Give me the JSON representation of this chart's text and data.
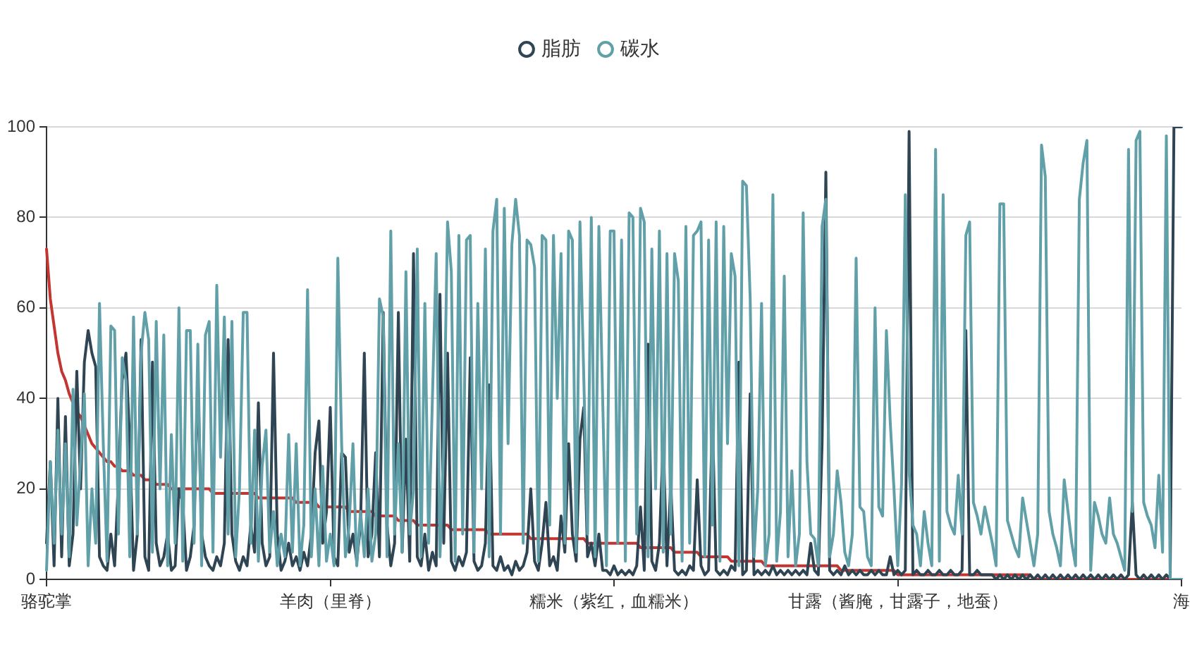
{
  "chart_data": {
    "type": "line",
    "categories": [
      "骆驼掌",
      null,
      null,
      null,
      null,
      null,
      null,
      null,
      null,
      null,
      null,
      null,
      null,
      null,
      null,
      null,
      null,
      null,
      null,
      null,
      null,
      null,
      null,
      null,
      null,
      null,
      null,
      null,
      null,
      null,
      null,
      null,
      null,
      null,
      null,
      null,
      null,
      null,
      null,
      null,
      null,
      null,
      null,
      null,
      null,
      null,
      null,
      null,
      null,
      null,
      null,
      null,
      null,
      null,
      null,
      null,
      null,
      null,
      null,
      null,
      null,
      null,
      null,
      null,
      null,
      null,
      null,
      null,
      null,
      null,
      null,
      null,
      null,
      null,
      null,
      "羊肉（里脊）",
      null,
      null,
      null,
      null,
      null,
      null,
      null,
      null,
      null,
      null,
      null,
      null,
      null,
      null,
      null,
      null,
      null,
      null,
      null,
      null,
      null,
      null,
      null,
      null,
      null,
      null,
      null,
      null,
      null,
      null,
      null,
      null,
      null,
      null,
      null,
      null,
      null,
      null,
      null,
      null,
      null,
      null,
      null,
      null,
      null,
      null,
      null,
      null,
      null,
      null,
      null,
      null,
      null,
      null,
      null,
      null,
      null,
      null,
      null,
      null,
      null,
      null,
      null,
      null,
      null,
      null,
      null,
      null,
      null,
      null,
      null,
      null,
      null,
      null,
      "糯米（紫红，血糯米）",
      null,
      null,
      null,
      null,
      null,
      null,
      null,
      null,
      null,
      null,
      null,
      null,
      null,
      null,
      null,
      null,
      null,
      null,
      null,
      null,
      null,
      null,
      null,
      null,
      null,
      null,
      null,
      null,
      null,
      null,
      null,
      null,
      null,
      null,
      null,
      null,
      null,
      null,
      null,
      null,
      null,
      null,
      null,
      null,
      null,
      null,
      null,
      null,
      null,
      null,
      null,
      null,
      null,
      null,
      null,
      null,
      null,
      null,
      null,
      null,
      null,
      null,
      null,
      null,
      null,
      null,
      null,
      null,
      null,
      null,
      null,
      null,
      null,
      null,
      "甘露（酱腌，甘露子，地蚕）",
      null,
      null,
      null,
      null,
      null,
      null,
      null,
      null,
      null,
      null,
      null,
      null,
      null,
      null,
      null,
      null,
      null,
      null,
      null,
      null,
      null,
      null,
      null,
      null,
      null,
      null,
      null,
      null,
      null,
      null,
      null,
      null,
      null,
      null,
      null,
      null,
      null,
      null,
      null,
      null,
      null,
      null,
      null,
      null,
      null,
      null,
      null,
      null,
      null,
      null,
      null,
      null,
      null,
      null,
      null,
      null,
      null,
      null,
      null,
      null,
      null,
      null,
      null,
      null,
      null,
      null,
      null,
      null,
      null,
      null,
      null,
      null,
      null,
      null,
      "海"
    ],
    "series": [
      {
        "color": "#c23531",
        "values": [
          73,
          62,
          56,
          50,
          46,
          44,
          41,
          39,
          37,
          36,
          34,
          32,
          30,
          29,
          28,
          27,
          26,
          26,
          25,
          25,
          24,
          24,
          24,
          23,
          23,
          23,
          22,
          22,
          22,
          21,
          21,
          21,
          21,
          20,
          20,
          20,
          20,
          20,
          20,
          20,
          20,
          20,
          20,
          20,
          19,
          19,
          19,
          19,
          19,
          19,
          19,
          19,
          19,
          19,
          19,
          19,
          18,
          18,
          18,
          18,
          18,
          18,
          18,
          18,
          18,
          18,
          17,
          17,
          17,
          17,
          17,
          17,
          16,
          16,
          16,
          16,
          16,
          16,
          16,
          16,
          15,
          15,
          15,
          15,
          15,
          15,
          15,
          14,
          14,
          14,
          14,
          14,
          14,
          13,
          13,
          13,
          13,
          13,
          12,
          12,
          12,
          12,
          12,
          12,
          12,
          12,
          12,
          11,
          11,
          11,
          11,
          11,
          11,
          11,
          11,
          11,
          11,
          10,
          10,
          10,
          10,
          10,
          10,
          10,
          10,
          10,
          10,
          10,
          9,
          9,
          9,
          9,
          9,
          9,
          9,
          9,
          9,
          9,
          9,
          9,
          9,
          9,
          9,
          8,
          8,
          8,
          8,
          8,
          8,
          8,
          8,
          8,
          8,
          8,
          8,
          8,
          8,
          7,
          7,
          7,
          7,
          7,
          7,
          7,
          7,
          7,
          6,
          6,
          6,
          6,
          6,
          6,
          6,
          5,
          5,
          5,
          5,
          5,
          5,
          5,
          5,
          4,
          4,
          4,
          4,
          4,
          4,
          4,
          4,
          4,
          3,
          3,
          3,
          3,
          3,
          3,
          3,
          3,
          3,
          3,
          3,
          3,
          3,
          3,
          3,
          3,
          3,
          3,
          3,
          3,
          2,
          2,
          2,
          2,
          2,
          2,
          2,
          2,
          2,
          2,
          2,
          2,
          2,
          2,
          2,
          1,
          1,
          1,
          1,
          1,
          1,
          1,
          1,
          1,
          1,
          1,
          1,
          1,
          1,
          1,
          1,
          1,
          1,
          1,
          1,
          1,
          1,
          1,
          1,
          1,
          1,
          1,
          1,
          1,
          1,
          1,
          1,
          1,
          1,
          1,
          1,
          0,
          0,
          0,
          0,
          0,
          0,
          0,
          0,
          0,
          0,
          0,
          0,
          0,
          0,
          0,
          0,
          0,
          0,
          0,
          0,
          0,
          0,
          0,
          0,
          0,
          0,
          0,
          0,
          0,
          0,
          0,
          0,
          0,
          0,
          0,
          0,
          0,
          0,
          0,
          0
        ]
      },
      {
        "name": "脂肪",
        "color": "#2f4554",
        "values": [
          8,
          26,
          3,
          40,
          5,
          36,
          3,
          10,
          46,
          20,
          48,
          55,
          50,
          47,
          5,
          3,
          2,
          10,
          3,
          22,
          44,
          50,
          30,
          2,
          10,
          53,
          5,
          2,
          48,
          8,
          3,
          5,
          10,
          2,
          3,
          20,
          17,
          2,
          5,
          12,
          45,
          10,
          5,
          3,
          2,
          5,
          3,
          8,
          53,
          10,
          4,
          2,
          5,
          3,
          12,
          6,
          39,
          8,
          3,
          5,
          50,
          10,
          2,
          4,
          8,
          3,
          5,
          2,
          6,
          3,
          10,
          28,
          35,
          8,
          15,
          38,
          5,
          3,
          28,
          27,
          6,
          10,
          4,
          12,
          50,
          5,
          10,
          28,
          5,
          59,
          12,
          3,
          8,
          59,
          6,
          31,
          4,
          72,
          5,
          3,
          10,
          2,
          6,
          3,
          63,
          8,
          50,
          4,
          2,
          5,
          3,
          6,
          49,
          4,
          2,
          3,
          8,
          43,
          3,
          2,
          5,
          2,
          3,
          1,
          4,
          2,
          3,
          6,
          20,
          4,
          2,
          8,
          17,
          3,
          5,
          2,
          14,
          6,
          30,
          10,
          4,
          31,
          38,
          5,
          8,
          3,
          10,
          2,
          2,
          1,
          3,
          1,
          2,
          1,
          2,
          1,
          3,
          16,
          2,
          52,
          4,
          2,
          8,
          31,
          3,
          21,
          2,
          1,
          2,
          1,
          3,
          2,
          22,
          3,
          1,
          2,
          36,
          2,
          1,
          2,
          1,
          3,
          2,
          48,
          1,
          2,
          41,
          1,
          2,
          1,
          2,
          1,
          3,
          1,
          2,
          1,
          2,
          1,
          2,
          1,
          2,
          1,
          8,
          2,
          1,
          30,
          90,
          2,
          1,
          2,
          1,
          3,
          1,
          2,
          1,
          2,
          1,
          1,
          2,
          1,
          2,
          1,
          1,
          5,
          1,
          2,
          1,
          2,
          99,
          1,
          2,
          1,
          1,
          2,
          1,
          1,
          2,
          1,
          1,
          2,
          1,
          1,
          2,
          55,
          1,
          1,
          2,
          1,
          1,
          1,
          1,
          0,
          1,
          0,
          1,
          0,
          1,
          0,
          1,
          0,
          1,
          0,
          1,
          0,
          1,
          0,
          1,
          0,
          1,
          0,
          1,
          0,
          1,
          0,
          1,
          0,
          1,
          0,
          1,
          0,
          1,
          0,
          1,
          0,
          1,
          0,
          1,
          17,
          1,
          0,
          1,
          0,
          1,
          0,
          1,
          0,
          1,
          0,
          100,
          100,
          100
        ]
      },
      {
        "name": "碳水",
        "color": "#61a0a8",
        "values": [
          2,
          26,
          8,
          33,
          10,
          30,
          5,
          42,
          12,
          26,
          41,
          3,
          20,
          8,
          61,
          30,
          4,
          56,
          55,
          10,
          49,
          44,
          5,
          58,
          10,
          50,
          59,
          53,
          6,
          57,
          20,
          54,
          3,
          32,
          8,
          60,
          4,
          55,
          55,
          8,
          52,
          3,
          54,
          57,
          6,
          65,
          27,
          58,
          10,
          57,
          5,
          20,
          59,
          59,
          8,
          33,
          4,
          25,
          33,
          6,
          15,
          3,
          10,
          5,
          32,
          6,
          30,
          3,
          12,
          64,
          5,
          20,
          3,
          25,
          4,
          10,
          3,
          71,
          30,
          5,
          12,
          30,
          3,
          15,
          5,
          20,
          4,
          10,
          62,
          58,
          5,
          77,
          10,
          30,
          6,
          68,
          10,
          20,
          73,
          5,
          61,
          8,
          40,
          72,
          5,
          30,
          79,
          68,
          4,
          76,
          10,
          75,
          76,
          6,
          61,
          20,
          73,
          5,
          77,
          84,
          10,
          82,
          30,
          74,
          84,
          76,
          8,
          75,
          74,
          69,
          4,
          76,
          75,
          12,
          76,
          40,
          72,
          8,
          77,
          75,
          6,
          79,
          45,
          10,
          80,
          5,
          78,
          40,
          3,
          77,
          77,
          8,
          75,
          4,
          81,
          80,
          10,
          82,
          79,
          5,
          73,
          20,
          77,
          6,
          72,
          10,
          72,
          66,
          4,
          78,
          8,
          76,
          77,
          79,
          5,
          75,
          12,
          79,
          4,
          78,
          30,
          72,
          67,
          3,
          88,
          87,
          62,
          5,
          20,
          61,
          3,
          10,
          85,
          4,
          15,
          67,
          5,
          24,
          3,
          10,
          81,
          26,
          10,
          9,
          3,
          78,
          84,
          5,
          10,
          24,
          17,
          6,
          3,
          10,
          71,
          16,
          15,
          5,
          3,
          60,
          16,
          14,
          55,
          35,
          20,
          3,
          21,
          85,
          24,
          12,
          10,
          3,
          15,
          8,
          3,
          95,
          4,
          85,
          15,
          12,
          10,
          23,
          10,
          76,
          79,
          17,
          14,
          10,
          16,
          12,
          8,
          3,
          83,
          83,
          13,
          10,
          7,
          5,
          18,
          13,
          8,
          3,
          10,
          96,
          89,
          15,
          10,
          7,
          3,
          22,
          15,
          8,
          3,
          84,
          92,
          97,
          2,
          17,
          14,
          10,
          8,
          18,
          10,
          8,
          5,
          2,
          95,
          15,
          97,
          99,
          17,
          14,
          12,
          7,
          23,
          6,
          98,
          0,
          0,
          0,
          0
        ]
      }
    ],
    "ylim": [
      0,
      100
    ],
    "yticks": [
      0,
      20,
      40,
      60,
      80,
      100
    ],
    "grid": "y",
    "legend": "top"
  }
}
